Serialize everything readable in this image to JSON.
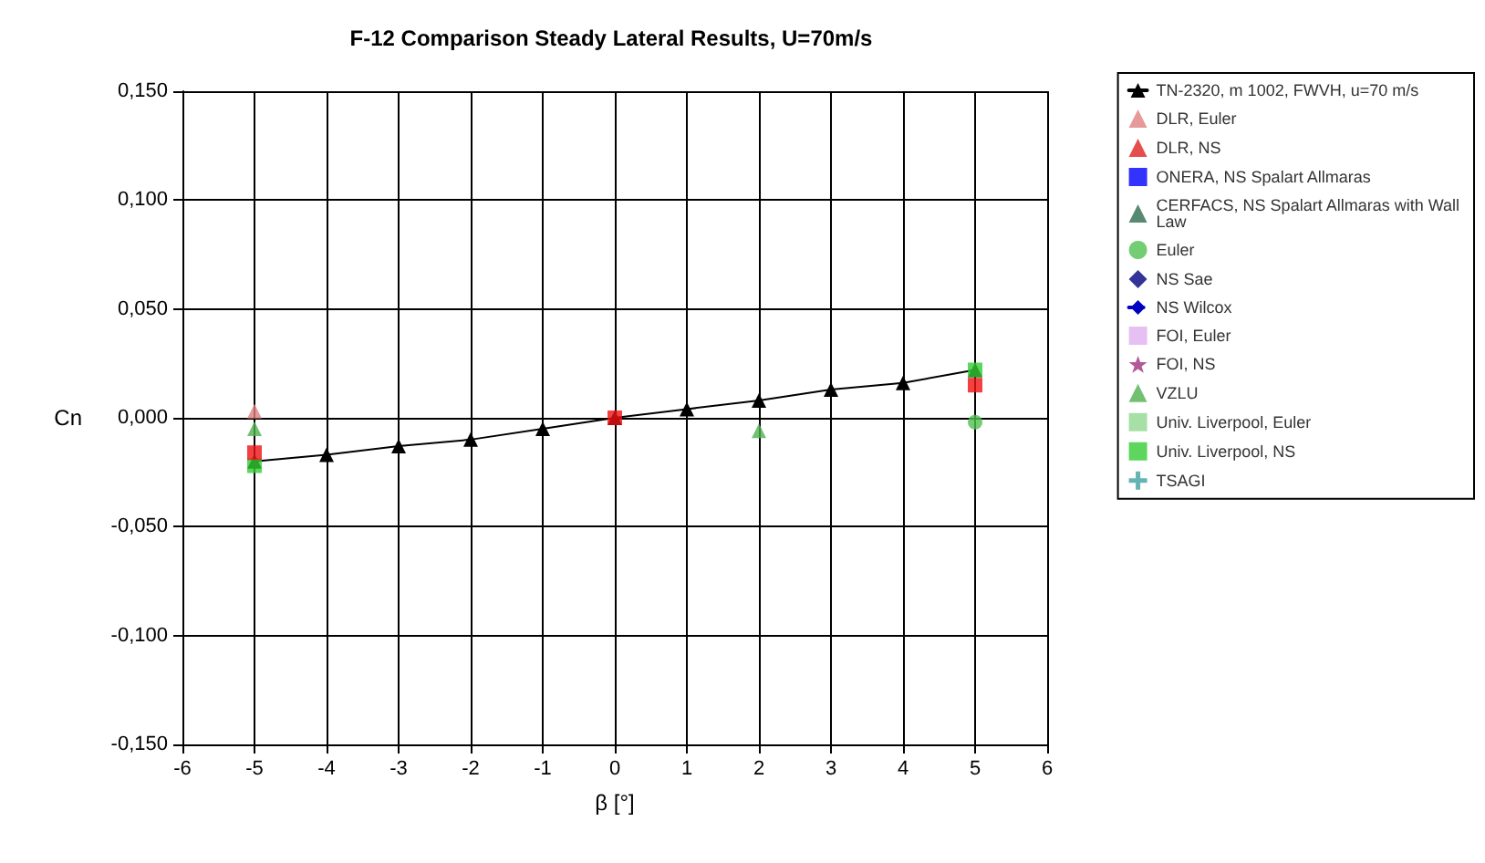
{
  "chart_data": {
    "type": "scatter",
    "title": "F-12 Comparison Steady Lateral Results, U=70m/s",
    "xlabel": "β [°]",
    "ylabel": "Cn",
    "x": [
      -5,
      -4,
      -3,
      -2,
      -1,
      0,
      1,
      2,
      3,
      4,
      5
    ],
    "xlim": [
      -6,
      6
    ],
    "xticks": [
      -6,
      -5,
      -4,
      -3,
      -2,
      -1,
      0,
      1,
      2,
      3,
      4,
      5,
      6
    ],
    "ylim": [
      -0.15,
      0.15
    ],
    "yticks": [
      {
        "value": -0.15,
        "label": "-0,150"
      },
      {
        "value": -0.1,
        "label": "-0,100"
      },
      {
        "value": -0.05,
        "label": "-0,050"
      },
      {
        "value": 0,
        "label": "0,000"
      },
      {
        "value": 0.05,
        "label": "0,050"
      },
      {
        "value": 0.1,
        "label": "0,100"
      },
      {
        "value": 0.15,
        "label": "0,150"
      }
    ],
    "grid": true,
    "legend": "right",
    "series": [
      {
        "name": "TN-2320, m 1002, FWVH, u=70 m/s",
        "type": "line",
        "marker": "triangle",
        "line_style": "solid",
        "color": "#000000",
        "values": [
          -0.02,
          -0.017,
          -0.013,
          -0.01,
          -0.005,
          0,
          0.004,
          0.008,
          0.013,
          0.016,
          0.022
        ]
      },
      {
        "name": "DLR, Euler",
        "marker": "triangle",
        "color": "#e08080",
        "x": [
          -5
        ],
        "values": [
          0.003
        ]
      },
      {
        "name": "DLR, NS",
        "marker": "triangle",
        "color": "#e02020",
        "values": [
          null,
          null,
          null,
          null,
          null,
          null,
          null,
          null,
          null,
          null,
          null
        ]
      },
      {
        "name": "ONERA, NS Spalart Allmaras",
        "marker": "square",
        "color": "#0000ff",
        "values": [
          null,
          null,
          null,
          null,
          null,
          null,
          null,
          null,
          null,
          null,
          null
        ]
      },
      {
        "name": "CERFACS, NS Spalart Allmaras with Wall Law",
        "marker": "triangle",
        "color": "#2e6b4f",
        "values": [
          null,
          null,
          null,
          null,
          null,
          null,
          null,
          null,
          null,
          null,
          null
        ]
      },
      {
        "name": "Euler",
        "marker": "circle",
        "color": "#50c050",
        "x": [
          5
        ],
        "values": [
          -0.002
        ]
      },
      {
        "name": "NS Sae",
        "marker": "diamond",
        "color": "#000080",
        "values": [
          null,
          null,
          null,
          null,
          null,
          null,
          null,
          null,
          null,
          null,
          null
        ]
      },
      {
        "name": "NS Wilcox",
        "type": "line",
        "marker": "diamond",
        "line_style": "dashed",
        "color": "#0000c0",
        "values": [
          null,
          null,
          null,
          null,
          null,
          null,
          null,
          null,
          null,
          null,
          null
        ]
      },
      {
        "name": "FOI, Euler",
        "marker": "square",
        "color": "#e0b0f0",
        "values": [
          null,
          null,
          null,
          null,
          null,
          null,
          null,
          null,
          null,
          null,
          null
        ]
      },
      {
        "name": "FOI, NS",
        "marker": "star",
        "color": "#a03080",
        "values": [
          null,
          null,
          null,
          null,
          null,
          null,
          null,
          null,
          null,
          null,
          null
        ]
      },
      {
        "name": "VZLU",
        "marker": "triangle",
        "color": "#50b050",
        "x": [
          -5,
          2
        ],
        "values": [
          -0.005,
          -0.006
        ]
      },
      {
        "name": "Univ. Liverpool, Euler",
        "marker": "square",
        "color": "#90d890",
        "values": [
          null,
          null,
          null,
          null,
          null,
          null,
          null,
          null,
          null,
          null,
          null
        ]
      },
      {
        "name": "Univ. Liverpool, NS",
        "marker": "square",
        "color": "#33cc33",
        "x": [
          -5,
          5
        ],
        "values": [
          -0.022,
          0.022
        ]
      },
      {
        "name": "TSAGI",
        "marker": "cross",
        "color": "#40a0a0",
        "values": [
          null,
          null,
          null,
          null,
          null,
          null,
          null,
          null,
          null,
          null,
          null
        ]
      },
      {
        "marker": "square",
        "color": "#ee1111",
        "x": [
          -5,
          0,
          5
        ],
        "values": [
          -0.016,
          0,
          0.015
        ]
      }
    ]
  }
}
